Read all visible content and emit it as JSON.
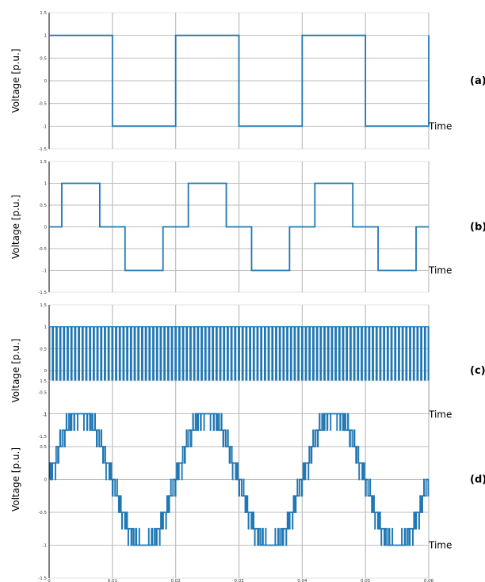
{
  "chart_data": [
    {
      "type": "line",
      "panel_label": "(a)",
      "ylabel": "Voltage [p.u.]",
      "xlabel": "Time",
      "xlim": [
        0,
        0.06
      ],
      "ylim": [
        -1.5,
        1.5
      ],
      "ytick_labels": [
        "1.5",
        "1",
        "0.5",
        "0",
        "-0.5",
        "-1",
        "-1.5"
      ],
      "waveform": "two-level square wave, f = 50 Hz",
      "series": [
        {
          "x": [
            0,
            0.01,
            0.01,
            0.02,
            0.02,
            0.03,
            0.03,
            0.04,
            0.04,
            0.05,
            0.05,
            0.06,
            0.06
          ],
          "y": [
            1,
            1,
            -1,
            -1,
            1,
            1,
            -1,
            -1,
            1,
            1,
            -1,
            -1,
            1
          ]
        }
      ]
    },
    {
      "type": "line",
      "panel_label": "(b)",
      "ylabel": "Voltage [p.u.]",
      "xlabel": "Time",
      "xlim": [
        0,
        0.06
      ],
      "ylim": [
        -1.5,
        1.5
      ],
      "ytick_labels": [
        "1.5",
        "1",
        "0.5",
        "0",
        "-0.5",
        "-1",
        "-1.5"
      ],
      "waveform": "three-level quasi-square wave, f = 50 Hz",
      "series": [
        {
          "x": [
            0,
            0.002,
            0.002,
            0.008,
            0.008,
            0.012,
            0.012,
            0.018,
            0.018,
            0.022,
            0.022,
            0.028,
            0.028,
            0.032,
            0.032,
            0.038,
            0.038,
            0.042,
            0.042,
            0.048,
            0.048,
            0.052,
            0.052,
            0.058,
            0.058,
            0.06
          ],
          "y": [
            0,
            0,
            1,
            1,
            0,
            0,
            -1,
            -1,
            0,
            0,
            1,
            1,
            0,
            0,
            -1,
            -1,
            0,
            0,
            1,
            1,
            0,
            0,
            -1,
            -1,
            0,
            0
          ]
        }
      ]
    },
    {
      "type": "line",
      "panel_label": "(c)",
      "ylabel": "Voltage [p.u.]",
      "xlabel": "Time",
      "xlim": [
        0,
        0.06
      ],
      "ylim": [
        -1.5,
        1.5
      ],
      "ytick_labels": [
        "1.5",
        "1",
        "0.5",
        "0",
        "-0.5",
        "-1",
        "-1.5"
      ],
      "waveform": "two-level PWM, switching between +1 and -1",
      "switch_frequency_hz": 1700,
      "levels": [
        1,
        -1
      ]
    },
    {
      "type": "line",
      "panel_label": "(d)",
      "ylabel": "Voltage [p.u.]",
      "xlabel": "Time",
      "xlim": [
        0,
        0.06
      ],
      "ylim": [
        -1.5,
        1.5
      ],
      "ytick_labels": [
        "1.5",
        "1",
        "0.5",
        "0",
        "-0.5",
        "-1",
        "-1.5"
      ],
      "xtick_labels": [
        "0",
        "0.01",
        "0.02",
        "0.03",
        "0.04",
        "0.05",
        "0.06"
      ],
      "waveform": "multilevel staircase PWM approximating a 50 Hz sine",
      "fundamental_hz": 50,
      "carrier_hz": 2000,
      "levels": [
        -1,
        -0.75,
        -0.5,
        -0.25,
        0,
        0.25,
        0.5,
        0.75,
        1
      ]
    }
  ],
  "colors": {
    "trace": "#1f77b4",
    "grid": "#bdbdbd",
    "axis": "#000000",
    "frame": "#dddddd"
  }
}
